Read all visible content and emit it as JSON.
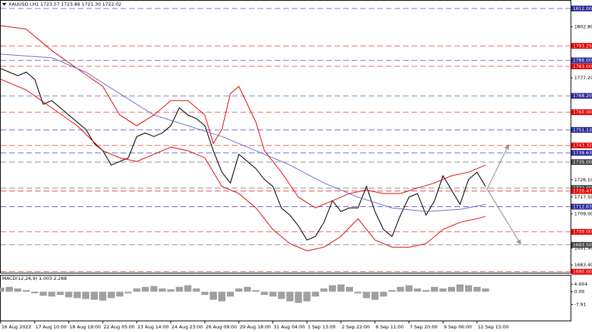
{
  "chart_data": [
    {
      "type": "line",
      "title": "XAUUSD.i,H1  1723.57 1723.86 1721.30 1722.02",
      "xlim": [
        0,
        67
      ],
      "xticks": [
        {
          "value": 0,
          "label": "16 Aug 2022"
        },
        {
          "value": 4,
          "label": "17 Aug 10:00"
        },
        {
          "value": 8,
          "label": "18 Aug 19:00"
        },
        {
          "value": 12,
          "label": "22 Aug 05:00"
        },
        {
          "value": 16,
          "label": "23 Aug 14:00"
        },
        {
          "value": 20,
          "label": "24 Aug 23:00"
        },
        {
          "value": 24,
          "label": "26 Aug 09:00"
        },
        {
          "value": 28,
          "label": "29 Aug 18:00"
        },
        {
          "value": 32,
          "label": "31 Aug 04:00"
        },
        {
          "value": 36,
          "label": "1 Sep 13:00"
        },
        {
          "value": 40,
          "label": "2 Sep 22:00"
        },
        {
          "value": 44,
          "label": "6 Sep 11:00"
        },
        {
          "value": 48,
          "label": "7 Sep 20:00"
        },
        {
          "value": 52,
          "label": "9 Sep 06:00"
        },
        {
          "value": 56,
          "label": "12 Sep 15:00"
        }
      ],
      "ylim": [
        1679.5,
        1815.9
      ],
      "yticks": [
        {
          "value": 1802.8,
          "label": "1802.80"
        },
        {
          "value": 1777.2,
          "label": "1777.20"
        },
        {
          "value": 1726.1,
          "label": "1726.10"
        },
        {
          "value": 1717.5,
          "label": "1717.50"
        },
        {
          "value": 1709,
          "label": "1709.00"
        },
        {
          "value": 1691.9,
          "label": "1691.90"
        },
        {
          "value": 1683.4,
          "label": "1683.40"
        }
      ],
      "levels": [
        {
          "value": 1812,
          "label": "1812.00",
          "color": "#2a2a9a"
        },
        {
          "value": 1793.25,
          "color": "#e00000"
        },
        {
          "value": 1786,
          "label": "1786.00",
          "color": "#2a2a9a"
        },
        {
          "value": 1783,
          "label": "1783.00",
          "color": "#e00000"
        },
        {
          "value": 1768.2,
          "label": "1768.20",
          "color": "#2a2a9a"
        },
        {
          "value": 1760,
          "label": "1760.00",
          "color": "#e00000"
        },
        {
          "value": 1751.13,
          "color": "#2a2a9a"
        },
        {
          "value": 1743.32,
          "color": "#e00000"
        },
        {
          "value": 1739.63,
          "color": "#2a2a9a"
        },
        {
          "value": 1735,
          "label": "1735.00",
          "color": "#444444"
        },
        {
          "value": 1722,
          "label": "1722.00",
          "color": "#444444"
        },
        {
          "value": 1720.47,
          "color": "#e00000"
        },
        {
          "value": 1712.63,
          "color": "#2a2a9a"
        },
        {
          "value": 1700,
          "label": "1700.00",
          "color": "#e00000"
        },
        {
          "value": 1693.5,
          "label": "1693.50",
          "color": "#444444"
        },
        {
          "value": 1680,
          "label": "1680.00",
          "color": "#e00000"
        }
      ],
      "series": [
        {
          "color": "#000000",
          "values": [
            1781.9,
            1780.1,
            1778.3,
            1780.1,
            1776.5,
            1764.0,
            1765.8,
            1762.2,
            1758.6,
            1755.0,
            1751.4,
            1744.3,
            1740.7,
            1733.5,
            1735.3,
            1737.1,
            1747.8,
            1749.6,
            1747.8,
            1749.6,
            1753.2,
            1762.2,
            1758.6,
            1756.8,
            1753.2,
            1740.7,
            1729.9,
            1724.5,
            1738.9,
            1735.3,
            1731.7,
            1726.3,
            1722.8,
            1712.0,
            1708.4,
            1703.0,
            1695.9,
            1697.7,
            1704.8,
            1715.6,
            1710.2,
            1712.0,
            1712.0,
            1722.8,
            1710.2,
            1701.2,
            1697.7,
            1708.4,
            1717.4,
            1719.2,
            1708.4,
            1715.6,
            1728.1,
            1721.0,
            1713.8,
            1726.3,
            1729.9,
            1722.8
          ]
        },
        {
          "color": "#e00000",
          "x": [
            0,
            3,
            6,
            9,
            12,
            14,
            16,
            18,
            20,
            22,
            24,
            25,
            26,
            27,
            28,
            30,
            31,
            33,
            35,
            37,
            39,
            41,
            43,
            45,
            47,
            49,
            51,
            53,
            55,
            57
          ],
          "values": [
            1803.4,
            1801.6,
            1790.9,
            1781.9,
            1772.9,
            1758.6,
            1753.2,
            1758.6,
            1765.8,
            1765.8,
            1758.6,
            1744.3,
            1751.4,
            1769.3,
            1772.9,
            1755.0,
            1740.7,
            1729.9,
            1717.4,
            1712.0,
            1715.6,
            1719.2,
            1721.0,
            1719.2,
            1719.2,
            1722.0,
            1724.5,
            1728.1,
            1729.9,
            1733.5
          ]
        },
        {
          "color": "#e00000",
          "x": [
            0,
            3,
            6,
            9,
            12,
            14,
            16,
            18,
            20,
            22,
            24,
            26,
            28,
            30,
            32,
            34,
            36,
            38,
            40,
            42,
            44,
            46,
            48,
            50,
            52,
            54,
            56,
            57
          ],
          "values": [
            1776.5,
            1771.1,
            1762.2,
            1753.2,
            1740.7,
            1737.1,
            1735.3,
            1738.9,
            1742.5,
            1740.7,
            1737.1,
            1722.8,
            1719.2,
            1712.0,
            1701.2,
            1694.1,
            1690.5,
            1692.3,
            1697.7,
            1706.6,
            1695.9,
            1692.3,
            1692.3,
            1694.1,
            1701.2,
            1704.8,
            1706.6,
            1707.7
          ]
        },
        {
          "color": "#6a6ad0",
          "x": [
            0,
            6,
            10,
            14,
            18,
            22,
            26,
            30,
            34,
            38,
            42,
            46,
            50,
            54,
            57
          ],
          "values": [
            1789.1,
            1787.3,
            1780.1,
            1769.3,
            1758.6,
            1753.2,
            1747.8,
            1740.7,
            1733.5,
            1724.5,
            1717.4,
            1712.0,
            1710.2,
            1711.3,
            1713.8
          ]
        }
      ]
    },
    {
      "type": "bar",
      "title": "MACD(12,26,9) 1.003 2.288",
      "color": "#a0a0a0",
      "ylim": [
        -9.5,
        6.0
      ],
      "yticks": [
        4.604,
        {
          "value": 0,
          "label": "0.00"
        },
        -7.91
      ],
      "values": [
        2.5,
        3,
        2,
        1,
        -1,
        -2.5,
        -3,
        -2,
        -3.5,
        -4,
        -4.5,
        -5,
        -5.5,
        -4,
        -3,
        -1,
        2,
        3,
        3.5,
        2,
        1.5,
        3,
        4,
        2,
        -2,
        -5,
        -6,
        -3,
        2,
        3,
        1,
        -2,
        -3,
        -4.5,
        -6,
        -7,
        -6,
        -3,
        2,
        4,
        4.5,
        3,
        -1,
        -4,
        -5,
        -3,
        1,
        3,
        4,
        2,
        1,
        3,
        2,
        3,
        4.5,
        4,
        3,
        2
      ]
    }
  ]
}
